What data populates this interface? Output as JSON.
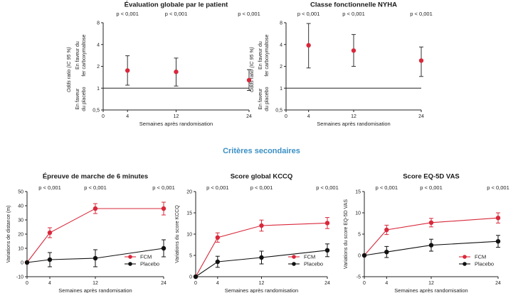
{
  "section": {
    "secondary_title": "Critères secondaires"
  },
  "colors": {
    "fcm": "#d8283b",
    "placebo": "#111111",
    "axis": "#222222",
    "title_blue": "#3a8fc4"
  },
  "chart_data": [
    {
      "type": "scatter",
      "title": "Évaluation globale par le patient",
      "xlabel": "Semaines après randomisation",
      "ylabel": "Odds ratio (IC 95 %)",
      "favor_upper": "En faveur du fer carboxymaltose",
      "favor_lower": "En faveur du placebo",
      "yscale": "log",
      "ylim": [
        0.5,
        8
      ],
      "yticks": [
        "0,5",
        "1",
        "2",
        "4",
        "8"
      ],
      "ytick_values": [
        0.5,
        1,
        2,
        4,
        8
      ],
      "xticks": [
        0,
        4,
        12,
        24
      ],
      "xlim": [
        0,
        24
      ],
      "reference_line": 1,
      "series": [
        {
          "x": [
            4,
            12,
            24
          ],
          "values": [
            1.75,
            1.68,
            1.29
          ],
          "ci_low": [
            1.1,
            1.07,
            0.93
          ],
          "ci_high": [
            2.8,
            2.6,
            1.8
          ]
        }
      ],
      "pvalues": [
        "p < 0,001",
        "p < 0,001",
        "p < 0,001"
      ]
    },
    {
      "type": "scatter",
      "title": "Classe fonctionnelle NYHA",
      "xlabel": "Semaines après randomisation",
      "ylabel": "Odds ratio (IC 95 %)",
      "favor_upper": "En faveur du fer carboxymaltose",
      "favor_lower": "En faveur du placebo",
      "yscale": "log",
      "ylim": [
        0.5,
        8
      ],
      "yticks": [
        "0,5",
        "1",
        "2",
        "4",
        "8"
      ],
      "ytick_values": [
        0.5,
        1,
        2,
        4,
        8
      ],
      "xticks": [
        0,
        4,
        12,
        24
      ],
      "xlim": [
        0,
        24
      ],
      "reference_line": 1,
      "series": [
        {
          "x": [
            4,
            12,
            24
          ],
          "values": [
            3.9,
            3.3,
            2.4
          ],
          "ci_low": [
            1.9,
            2.0,
            1.45
          ],
          "ci_high": [
            7.8,
            5.5,
            3.7
          ]
        }
      ],
      "pvalues": [
        "p < 0,001",
        "p < 0,001",
        "p < 0,001"
      ]
    },
    {
      "type": "line",
      "title": "Épreuve de marche de 6 minutes",
      "xlabel": "Semaines après randomisation",
      "ylabel": "Variations de distance (m)",
      "ylim": [
        -10,
        50
      ],
      "yticks": [
        -10,
        0,
        10,
        20,
        30,
        40,
        50
      ],
      "xticks": [
        0,
        4,
        12,
        24
      ],
      "xlim": [
        0,
        24
      ],
      "legend": "bottom-right",
      "series": [
        {
          "name": "FCM",
          "x": [
            0,
            4,
            12,
            24
          ],
          "values": [
            0,
            21,
            38,
            38
          ],
          "err": [
            0,
            3.5,
            3.5,
            4.5
          ]
        },
        {
          "name": "Placebo",
          "x": [
            0,
            4,
            12,
            24
          ],
          "values": [
            0,
            2,
            3,
            10
          ],
          "err": [
            0,
            5,
            6,
            6
          ]
        }
      ],
      "pvalues": [
        "p < 0,001",
        "p < 0,001",
        "p < 0,001"
      ]
    },
    {
      "type": "line",
      "title": "Score global KCCQ",
      "xlabel": "Semaines après randomisation",
      "ylabel": "Variations du score KCCQ",
      "ylim": [
        0,
        20
      ],
      "yticks": [
        0,
        5,
        10,
        15,
        20
      ],
      "xticks": [
        0,
        4,
        12,
        24
      ],
      "xlim": [
        0,
        24
      ],
      "legend": "bottom-right",
      "series": [
        {
          "name": "FCM",
          "x": [
            0,
            4,
            12,
            24
          ],
          "values": [
            0,
            9.2,
            12,
            12.6
          ],
          "err": [
            0,
            1.1,
            1.3,
            1.3
          ]
        },
        {
          "name": "Placebo",
          "x": [
            0,
            4,
            12,
            24
          ],
          "values": [
            0,
            3.5,
            4.5,
            6.2
          ],
          "err": [
            0,
            1.3,
            1.5,
            1.5
          ]
        }
      ],
      "pvalues": [
        "p < 0,001",
        "p < 0,001",
        "p < 0,001"
      ]
    },
    {
      "type": "line",
      "title": "Score EQ-5D VAS",
      "xlabel": "Semaines après randomisation",
      "ylabel": "Variations du score EQ-5D VAS",
      "ylim": [
        -5,
        15
      ],
      "yticks": [
        -5,
        0,
        5,
        10,
        15
      ],
      "xticks": [
        0,
        4,
        12,
        24
      ],
      "xlim": [
        0,
        24
      ],
      "legend": "bottom-right",
      "series": [
        {
          "name": "FCM",
          "x": [
            0,
            4,
            12,
            24
          ],
          "values": [
            0,
            6,
            7.7,
            8.8
          ],
          "err": [
            0,
            1.1,
            1.0,
            1.2
          ]
        },
        {
          "name": "Placebo",
          "x": [
            0,
            4,
            12,
            24
          ],
          "values": [
            0,
            0.8,
            2.4,
            3.3
          ],
          "err": [
            0,
            1.3,
            1.4,
            1.4
          ]
        }
      ],
      "pvalues": [
        "p < 0,001",
        "p < 0,001",
        "p < 0,001"
      ]
    }
  ]
}
